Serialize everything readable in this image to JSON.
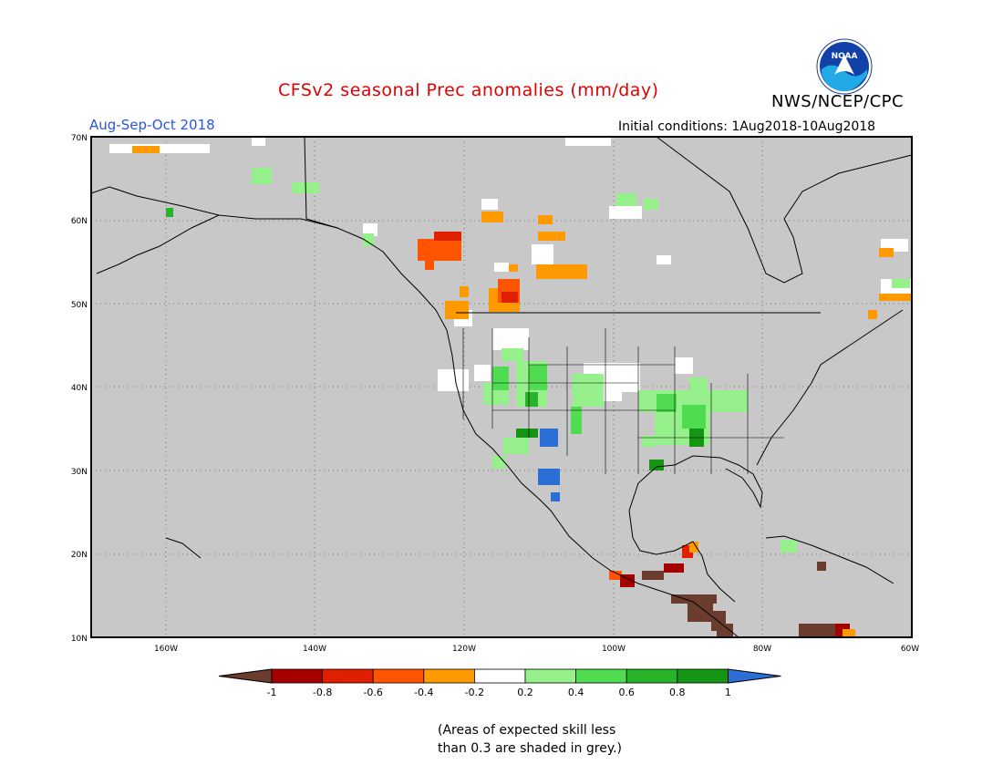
{
  "header": {
    "title": "CFSv2 seasonal Prec anomalies (mm/day)",
    "org": "NWS/NCEP/CPC",
    "season": "Aug-Sep-Oct 2018",
    "initial_conditions": "Initial conditions: 1Aug2018-10Aug2018",
    "logo_text": "NOAA"
  },
  "map": {
    "lat_ticks": [
      "70N",
      "60N",
      "50N",
      "40N",
      "30N",
      "20N",
      "10N"
    ],
    "lon_ticks": [
      "160W",
      "140W",
      "120W",
      "100W",
      "80W",
      "60W"
    ],
    "background_color": "#c8c8c8"
  },
  "colorbar": {
    "labels": [
      "-1",
      "-0.8",
      "-0.6",
      "-0.4",
      "-0.2",
      "0.2",
      "0.4",
      "0.6",
      "0.8",
      "1"
    ],
    "colors": [
      "#6b3d2e",
      "#a50000",
      "#e01e00",
      "#ff5500",
      "#ff9900",
      "#ffffff",
      "#96f08c",
      "#50dc50",
      "#28b428",
      "#149614",
      "#2b6fd6"
    ]
  },
  "footnote": {
    "line1": "(Areas of expected skill less",
    "line2": "than 0.3 are shaded in grey.)"
  }
}
